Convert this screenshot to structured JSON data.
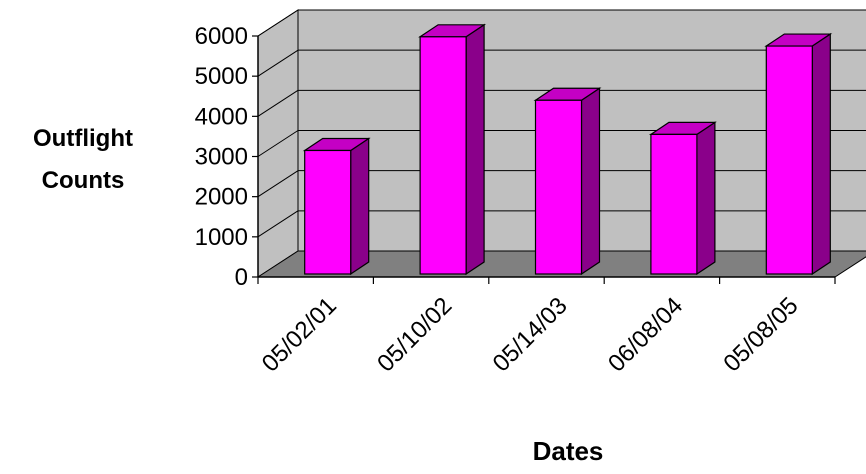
{
  "chart_data": {
    "type": "bar",
    "title": "",
    "xlabel": "Dates",
    "ylabel_lines": [
      "Outflight",
      "Counts"
    ],
    "categories": [
      "05/02/01",
      "05/10/02",
      "05/14/03",
      "06/08/04",
      "05/08/05"
    ],
    "values": [
      3150,
      5980,
      4400,
      3550,
      5750
    ],
    "ylim": [
      0,
      6000
    ],
    "yticks": [
      0,
      1000,
      2000,
      3000,
      4000,
      5000,
      6000
    ],
    "grid": true,
    "legend": "none",
    "style": "3d-column",
    "colors": {
      "bar_front": "#FF00FF",
      "bar_top": "#C400C4",
      "bar_side": "#8A008A",
      "back_wall": "#C0C0C0",
      "side_wall": "#C0C0C0",
      "floor": "#808080",
      "grid_line": "#000000",
      "axis_line": "#000000"
    }
  }
}
